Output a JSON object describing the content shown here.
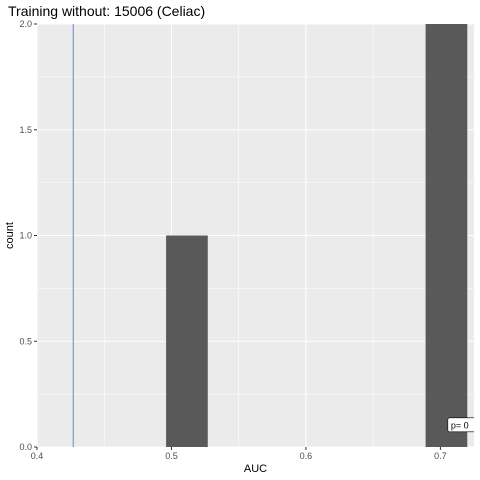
{
  "chart_data": {
    "type": "bar",
    "title": "Training without: 15006 (Celiac)",
    "xlabel": "AUC",
    "ylabel": "count",
    "xlim": [
      0.4,
      0.725
    ],
    "ylim": [
      0,
      2
    ],
    "x_ticks": [
      0.4,
      0.5,
      0.6,
      0.7
    ],
    "x_tick_labels": [
      "0.4",
      "0.5",
      "0.6",
      "0.7"
    ],
    "y_ticks": [
      0,
      0.5,
      1,
      1.5,
      2
    ],
    "y_tick_labels": [
      "0.0",
      "0.5",
      "1.0",
      "1.5",
      "2.0"
    ],
    "bars": [
      {
        "xmin": 0.496,
        "xmax": 0.527,
        "count": 1
      },
      {
        "xmin": 0.689,
        "xmax": 0.72,
        "count": 2
      }
    ],
    "vline": {
      "x": 0.427,
      "color": "#7b9ff2"
    },
    "annotation": {
      "text": "p= 0",
      "x": 0.71,
      "y": 0.1
    },
    "grid": true,
    "colors": {
      "panel": "#ebebeb",
      "grid": "#ffffff",
      "bar": "#595959"
    }
  }
}
